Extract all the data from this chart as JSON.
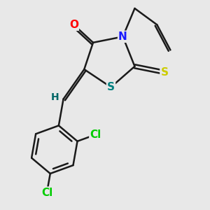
{
  "bg_color": "#e8e8e8",
  "bond_color": "#1a1a1a",
  "bond_width": 1.8,
  "atom_colors": {
    "O": "#ff0000",
    "N": "#1a1aff",
    "S_thioxo": "#cccc00",
    "S_ring": "#008080",
    "Cl": "#00cc00",
    "H": "#006666",
    "C": "#1a1a1a"
  },
  "font_size": 10,
  "fig_size": [
    3.0,
    3.0
  ],
  "dpi": 100
}
